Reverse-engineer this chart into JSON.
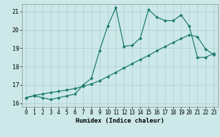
{
  "xlabel": "Humidex (Indice chaleur)",
  "background_color": "#cce8e8",
  "grid_color": "#aacccc",
  "line_color": "#1a7a6e",
  "xlim": [
    -0.5,
    23.5
  ],
  "ylim": [
    15.8,
    21.4
  ],
  "yticks": [
    16,
    17,
    18,
    19,
    20,
    21
  ],
  "xticks": [
    0,
    1,
    2,
    3,
    4,
    5,
    6,
    7,
    8,
    9,
    10,
    11,
    12,
    13,
    14,
    15,
    16,
    17,
    18,
    19,
    20,
    21,
    22,
    23
  ],
  "line1_y": [
    16.3,
    16.4,
    16.3,
    16.2,
    16.3,
    16.4,
    16.5,
    17.0,
    17.35,
    18.85,
    20.2,
    21.2,
    19.1,
    19.15,
    19.55,
    21.1,
    20.7,
    20.5,
    20.5,
    20.8,
    20.2,
    18.5,
    18.5,
    18.7
  ],
  "line2_y": [
    16.3,
    16.42,
    16.5,
    16.58,
    16.65,
    16.72,
    16.8,
    16.92,
    17.05,
    17.22,
    17.45,
    17.68,
    17.92,
    18.15,
    18.38,
    18.6,
    18.85,
    19.08,
    19.3,
    19.52,
    19.72,
    19.62,
    18.95,
    18.65
  ],
  "xlabel_fontsize": 6.5,
  "tick_fontsize": 5.5,
  "ytick_fontsize": 6.0
}
